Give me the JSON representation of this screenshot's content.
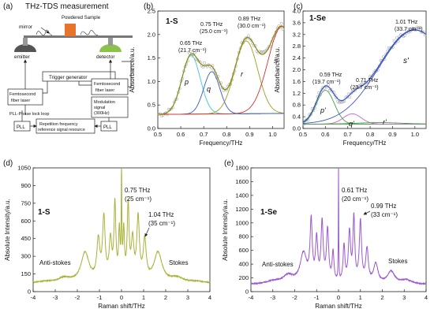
{
  "panel_a": {
    "letter": "(a)",
    "title": "THz-TDS measurement",
    "mirror": "mirror",
    "sample": "Powdered Sample",
    "emitter": "emitter",
    "detector": "detector",
    "trigger": "Trigger generator",
    "laser_left_1": "Femtosecond",
    "laser_left_2": "fiber laser",
    "laser_right_1": "Femtosecond",
    "laser_right_2": "fiber laser",
    "mod_1": "Modulation",
    "mod_2": "signal",
    "mod_3": "(300Hz)",
    "pll_loop": "PLL-Phase lock loop",
    "pll_left": "PLL",
    "pll_right": "PLL",
    "rep_1": "Repetition frequency",
    "rep_2": "reference signal resource",
    "colors": {
      "sample": "#e8732a",
      "emitter": "#555555",
      "detector": "#8bc34a"
    }
  },
  "chart_data": [
    {
      "panel": "(b)",
      "type": "scatter",
      "sample_label": "1-S",
      "xlabel": "Frequency/THz",
      "ylabel": "Absorbance/a.u.",
      "xlim": [
        0.5,
        1.05
      ],
      "ylim": [
        0,
        2.5
      ],
      "xticks": [
        "0.5",
        "0.6",
        "0.7",
        "0.8",
        "0.9",
        "1.0"
      ],
      "yticks": [
        "0.0",
        "0.5",
        "1.0",
        "1.5",
        "2.0",
        "2.5"
      ],
      "peaks": [
        {
          "x": 0.65,
          "l1": "0.65 THz",
          "l2": "(21.7 cm⁻¹)"
        },
        {
          "x": 0.75,
          "l1": "0.75 THz",
          "l2": "(25.0 cm⁻¹)"
        },
        {
          "x": 0.89,
          "l1": "0.89 THz",
          "l2": "(30.0 cm⁻¹)"
        }
      ],
      "peak_letters": [
        "p",
        "q",
        "r",
        "s"
      ],
      "base_line": [
        0.3,
        0.32
      ],
      "components": [
        {
          "c": 0.645,
          "a": 1.25,
          "w": 0.04,
          "color": "#40c8c8"
        },
        {
          "c": 0.735,
          "a": 0.9,
          "w": 0.035,
          "color": "#3a56c8"
        },
        {
          "c": 0.885,
          "a": 1.55,
          "w": 0.05,
          "color": "#9aa020"
        },
        {
          "c": 1.04,
          "a": 1.85,
          "w": 0.06,
          "color": "#d83030"
        }
      ],
      "colors": {
        "points": "#999999",
        "fit": "#8a8a10",
        "base": "#555555"
      }
    },
    {
      "panel": "(c)",
      "type": "scatter",
      "sample_label": "1-Se",
      "xlabel": "Frequency/THz",
      "ylabel": "Absorbance/a.u.",
      "xlim": [
        0.5,
        1.05
      ],
      "ylim": [
        0,
        4.0
      ],
      "xticks": [
        "0.5",
        "0.6",
        "0.7",
        "0.8",
        "0.9",
        "1.0"
      ],
      "yticks": [
        "0.0",
        "0.4",
        "0.8",
        "1.2",
        "1.6",
        "2.0",
        "2.4",
        "2.8",
        "3.2",
        "3.6",
        "4.0"
      ],
      "peaks": [
        {
          "x": 0.59,
          "l1": "0.59 THz",
          "l2": "(19.7 cm⁻¹)"
        },
        {
          "x": 0.71,
          "l1": "0.71 THz",
          "l2": "(23.7 cm⁻¹)"
        },
        {
          "x": 1.01,
          "l1": "1.01 THz",
          "l2": "(33.7 cm⁻¹)"
        }
      ],
      "peak_letters": [
        "p'",
        "q'",
        "r'",
        "s'"
      ],
      "base_line": [
        0.15,
        0.15
      ],
      "components": [
        {
          "c": 0.6,
          "a": 1.15,
          "w": 0.04,
          "color": "#4a9a4a"
        },
        {
          "c": 0.72,
          "a": 0.35,
          "w": 0.04,
          "color": "#c860c8"
        },
        {
          "c": 0.84,
          "a": 0.05,
          "w": 0.1,
          "color": "#40a040"
        },
        {
          "c": 1.0,
          "a": 3.2,
          "w": 0.16,
          "color": "#3a56c8"
        }
      ],
      "colors": {
        "points": "#999999",
        "fit": "#3a56c8",
        "base": "#40a040"
      }
    },
    {
      "panel": "(d)",
      "type": "line",
      "sample_label": "1-S",
      "xlabel": "Raman shift/THz",
      "ylabel": "Absolute Intensity/a.u.",
      "xlim": [
        -4,
        4
      ],
      "ylim": [
        0,
        1050
      ],
      "xticks": [
        "-4",
        "-3",
        "-2",
        "-1",
        "0",
        "1",
        "2",
        "3",
        "4"
      ],
      "yticks": [
        "0",
        "150",
        "300",
        "450",
        "600",
        "750",
        "900",
        "1050"
      ],
      "annotations": [
        {
          "l1": "0.75 THz",
          "l2": "(25 cm⁻¹)"
        },
        {
          "l1": "1.04 THz",
          "l2": "(35 cm⁻¹)"
        }
      ],
      "left_label": "Anti-stokes",
      "right_label": "Stokes",
      "baseline": 70,
      "peaks": [
        {
          "x": -3.5,
          "h": 10,
          "w": 0.4
        },
        {
          "x": -2.6,
          "h": 40,
          "w": 0.35
        },
        {
          "x": -1.65,
          "h": 250,
          "w": 0.22
        },
        {
          "x": -1.05,
          "h": 330,
          "w": 0.08
        },
        {
          "x": -0.8,
          "h": 520,
          "w": 0.07
        },
        {
          "x": -0.5,
          "h": 330,
          "w": 0.07
        },
        {
          "x": -0.3,
          "h": 630,
          "w": 0.05
        },
        {
          "x": -0.1,
          "h": 400,
          "w": 0.04
        },
        {
          "x": 0.0,
          "h": 980,
          "w": 0.015
        },
        {
          "x": 0.1,
          "h": 400,
          "w": 0.04
        },
        {
          "x": 0.3,
          "h": 620,
          "w": 0.05
        },
        {
          "x": 0.5,
          "h": 330,
          "w": 0.07
        },
        {
          "x": 0.75,
          "h": 520,
          "w": 0.07
        },
        {
          "x": 1.05,
          "h": 330,
          "w": 0.08
        },
        {
          "x": 1.65,
          "h": 250,
          "w": 0.22
        },
        {
          "x": 2.5,
          "h": 40,
          "w": 0.35
        },
        {
          "x": 3.4,
          "h": 10,
          "w": 0.4
        }
      ],
      "dip": {
        "x": 0.0,
        "depth": 20,
        "w": 0.04
      },
      "color": "#a9b23a"
    },
    {
      "panel": "(e)",
      "type": "line",
      "sample_label": "1-Se",
      "xlabel": "Raman shift/THz",
      "ylabel": "Absolute Intensity/a.u.",
      "xlim": [
        -4,
        4
      ],
      "ylim": [
        0,
        1800
      ],
      "xticks": [
        "-4",
        "-3",
        "-2",
        "-1",
        "0",
        "1",
        "2",
        "3",
        "4"
      ],
      "yticks": [
        "0",
        "200",
        "400",
        "600",
        "800",
        "1000",
        "1200",
        "1400",
        "1600",
        "1800"
      ],
      "annotations": [
        {
          "l1": "0.61 THz",
          "l2": "(20 cm⁻¹)"
        },
        {
          "l1": "0.99 THz",
          "l2": "(33 cm⁻¹)"
        }
      ],
      "left_label": "Anti-stokes",
      "right_label": "Stokes",
      "baseline": 100,
      "peaks": [
        {
          "x": -3.0,
          "h": 40,
          "w": 0.4
        },
        {
          "x": -2.3,
          "h": 120,
          "w": 0.3
        },
        {
          "x": -1.6,
          "h": 430,
          "w": 0.18
        },
        {
          "x": -1.25,
          "h": 850,
          "w": 0.06
        },
        {
          "x": -1.0,
          "h": 600,
          "w": 0.06
        },
        {
          "x": -0.75,
          "h": 850,
          "w": 0.06
        },
        {
          "x": -0.5,
          "h": 750,
          "w": 0.06
        },
        {
          "x": -0.25,
          "h": 430,
          "w": 0.05
        },
        {
          "x": 0.0,
          "h": 1700,
          "w": 0.012
        },
        {
          "x": 0.25,
          "h": 530,
          "w": 0.05
        },
        {
          "x": 0.5,
          "h": 720,
          "w": 0.06
        },
        {
          "x": 0.7,
          "h": 930,
          "w": 0.05
        },
        {
          "x": 1.0,
          "h": 880,
          "w": 0.06
        },
        {
          "x": 1.3,
          "h": 480,
          "w": 0.07
        },
        {
          "x": 1.7,
          "h": 280,
          "w": 0.12
        },
        {
          "x": 2.4,
          "h": 180,
          "w": 0.2
        },
        {
          "x": 3.1,
          "h": 60,
          "w": 0.3
        }
      ],
      "dip": {
        "x": 0.0,
        "depth": 60,
        "w": 0.04
      },
      "color": "#9b59d0"
    }
  ]
}
